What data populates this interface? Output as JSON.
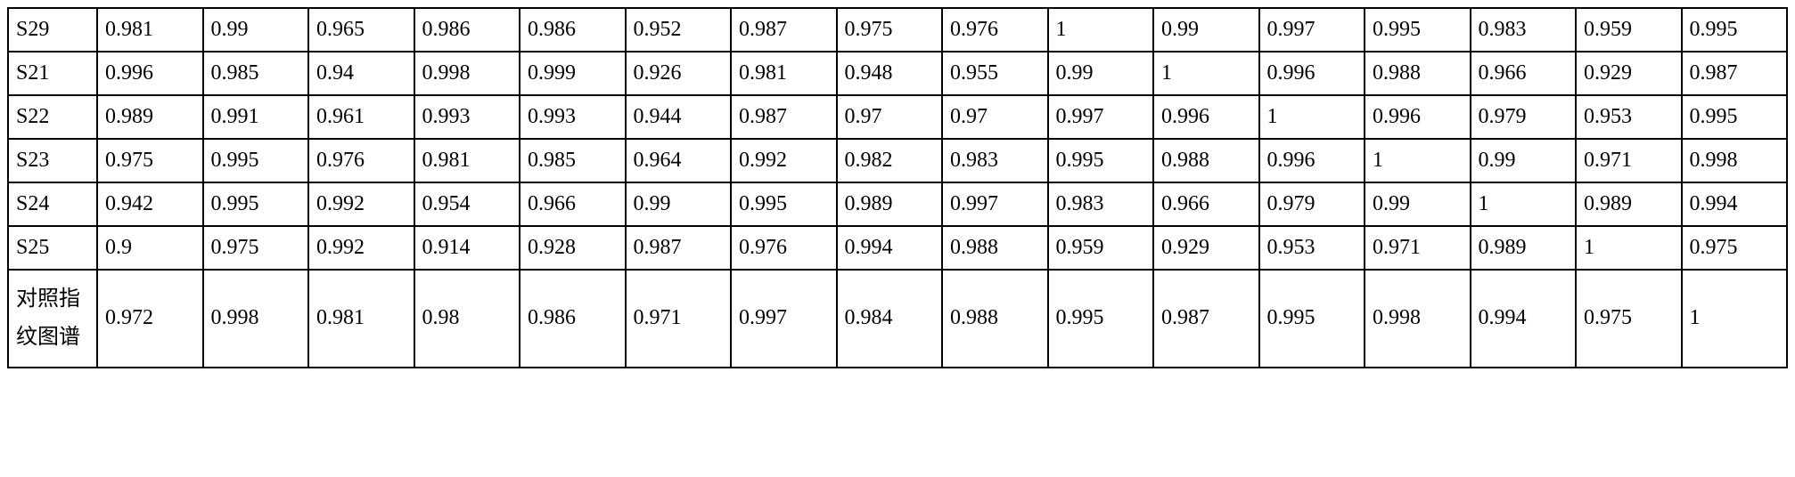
{
  "table": {
    "type": "table",
    "background_color": "#ffffff",
    "border_color": "#000000",
    "font_size": 24,
    "rows": [
      {
        "label": "S29",
        "values": [
          "0.981",
          "0.99",
          "0.965",
          "0.986",
          "0.986",
          "0.952",
          "0.987",
          "0.975",
          "0.976",
          "1",
          "0.99",
          "0.997",
          "0.995",
          "0.983",
          "0.959",
          "0.995"
        ]
      },
      {
        "label": "S21",
        "values": [
          "0.996",
          "0.985",
          "0.94",
          "0.998",
          "0.999",
          "0.926",
          "0.981",
          "0.948",
          "0.955",
          "0.99",
          "1",
          "0.996",
          "0.988",
          "0.966",
          "0.929",
          "0.987"
        ]
      },
      {
        "label": "S22",
        "values": [
          "0.989",
          "0.991",
          "0.961",
          "0.993",
          "0.993",
          "0.944",
          "0.987",
          "0.97",
          "0.97",
          "0.997",
          "0.996",
          "1",
          "0.996",
          "0.979",
          "0.953",
          "0.995"
        ]
      },
      {
        "label": "S23",
        "values": [
          "0.975",
          "0.995",
          "0.976",
          "0.981",
          "0.985",
          "0.964",
          "0.992",
          "0.982",
          "0.983",
          "0.995",
          "0.988",
          "0.996",
          "1",
          "0.99",
          "0.971",
          "0.998"
        ]
      },
      {
        "label": "S24",
        "values": [
          "0.942",
          "0.995",
          "0.992",
          "0.954",
          "0.966",
          "0.99",
          "0.995",
          "0.989",
          "0.997",
          "0.983",
          "0.966",
          "0.979",
          "0.99",
          "1",
          "0.989",
          "0.994"
        ]
      },
      {
        "label": "S25",
        "values": [
          "0.9",
          "0.975",
          "0.992",
          "0.914",
          "0.928",
          "0.987",
          "0.976",
          "0.994",
          "0.988",
          "0.959",
          "0.929",
          "0.953",
          "0.971",
          "0.989",
          "1",
          "0.975"
        ]
      },
      {
        "label": "对照指纹图谱",
        "values": [
          "0.972",
          "0.998",
          "0.981",
          "0.98",
          "0.986",
          "0.971",
          "0.997",
          "0.984",
          "0.988",
          "0.995",
          "0.987",
          "0.995",
          "0.998",
          "0.994",
          "0.975",
          "1"
        ],
        "tall": true
      }
    ]
  }
}
